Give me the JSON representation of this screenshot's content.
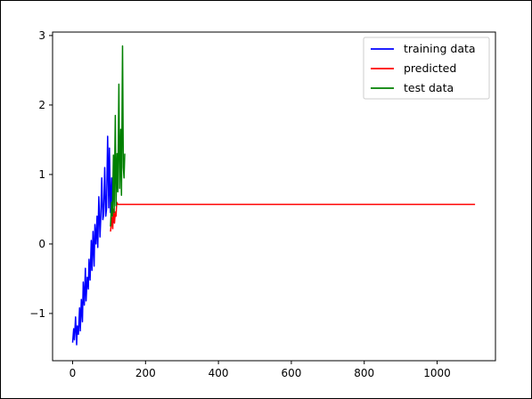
{
  "chart_data": {
    "type": "line",
    "title": "",
    "xlabel": "",
    "ylabel": "",
    "xlim": [
      -55,
      1160
    ],
    "ylim": [
      -1.68,
      3.05
    ],
    "xticks": [
      0,
      200,
      400,
      600,
      800,
      1000
    ],
    "xtick_labels": [
      "0",
      "200",
      "400",
      "600",
      "800",
      "1000"
    ],
    "yticks": [
      -1,
      0,
      1,
      2,
      3
    ],
    "ytick_labels": [
      "−1",
      "0",
      "1",
      "2",
      "3"
    ],
    "grid": false,
    "legend_position": "top-right",
    "series": [
      {
        "name": "training data",
        "color": "#0000ff",
        "x": [
          0,
          3,
          5,
          8,
          11,
          13,
          16,
          19,
          21,
          24,
          27,
          29,
          32,
          35,
          37,
          40,
          43,
          45,
          48,
          51,
          53,
          56,
          59,
          61,
          64,
          67,
          69,
          72,
          75,
          77,
          80,
          83,
          85,
          88,
          91,
          93,
          96,
          99,
          101,
          104,
          107,
          109,
          112
        ],
        "y": [
          -1.42,
          -1.22,
          -1.38,
          -1.05,
          -1.45,
          -1.18,
          -1.3,
          -0.92,
          -1.25,
          -0.8,
          -1.12,
          -0.55,
          -0.88,
          -0.35,
          -0.82,
          -0.48,
          -0.65,
          -0.22,
          -0.52,
          0.05,
          -0.38,
          0.18,
          -0.32,
          0.28,
          0.0,
          0.4,
          -0.05,
          0.68,
          0.1,
          0.35,
          0.95,
          0.35,
          0.42,
          1.1,
          0.4,
          0.5,
          1.55,
          0.52,
          1.38,
          0.45,
          0.95,
          0.55,
          0.3
        ]
      },
      {
        "name": "predicted",
        "color": "#ff0000",
        "x": [
          104,
          108,
          110,
          112,
          115,
          117,
          119,
          121,
          124,
          1104
        ],
        "y": [
          0.18,
          0.38,
          0.22,
          0.5,
          0.3,
          0.46,
          0.4,
          0.6,
          0.57,
          0.57
        ]
      },
      {
        "name": "test data",
        "color": "#008000",
        "x": [
          104,
          107,
          109,
          112,
          114,
          117,
          119,
          122,
          124,
          127,
          129,
          132,
          134,
          137,
          139,
          141,
          143
        ],
        "y": [
          0.25,
          0.6,
          0.4,
          1.28,
          0.45,
          1.85,
          0.55,
          1.3,
          0.75,
          2.3,
          0.8,
          1.65,
          0.7,
          2.85,
          1.1,
          0.95,
          1.3
        ]
      }
    ]
  }
}
